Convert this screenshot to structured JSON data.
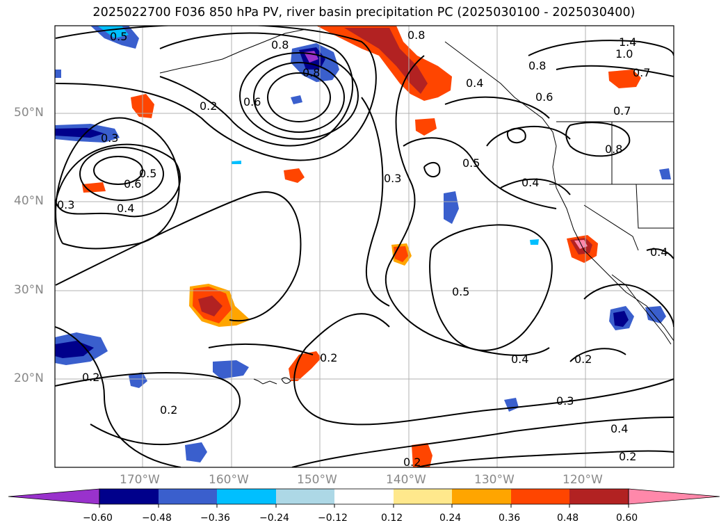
{
  "title": "2025022700 F036 850 hPa PV, river basin precipitation PC (2025030100 - 2025030400)",
  "lat_labels": [
    "50°N",
    "40°N",
    "30°N",
    "20°N"
  ],
  "lon_labels": [
    "170°W",
    "160°W",
    "150°W",
    "140°W",
    "130°W",
    "120°W"
  ],
  "contour_labels": [
    "0.5",
    "0.8",
    "0.8",
    "0.8",
    "1.4",
    "1.0",
    "0.7",
    "0.8",
    "0.6",
    "0.7",
    "0.6",
    "0.2",
    "0.3",
    "0.8",
    "0.3",
    "0.6",
    "0.5",
    "0.4",
    "0.5",
    "0.3",
    "0.4",
    "0.5",
    "0.4",
    "0.2",
    "0.2",
    "0.4",
    "0.2",
    "0.2",
    "0.3",
    "0.4",
    "0.2",
    "0.2",
    "0.4"
  ],
  "colorbar": {
    "ticks": [
      "−0.60",
      "−0.48",
      "−0.36",
      "−0.24",
      "−0.12",
      "0.12",
      "0.24",
      "0.36",
      "0.48",
      "0.60"
    ],
    "colors": [
      "#9932cc",
      "#00008b",
      "#3a5fcd",
      "#00bfff",
      "#add8e6",
      "#ffffff",
      "#ffe88c",
      "#ffa500",
      "#ff4500",
      "#b22222",
      "#ff88aa"
    ]
  },
  "colors": {
    "neg_strong": "#00008b",
    "neg_mid": "#3a5fcd",
    "neg_light": "#00bfff",
    "pos_light": "#ffe88c",
    "pos_mid": "#ffa500",
    "pos_strong": "#ff4500",
    "pos_dark": "#b22222",
    "pos_max": "#ff88aa"
  }
}
